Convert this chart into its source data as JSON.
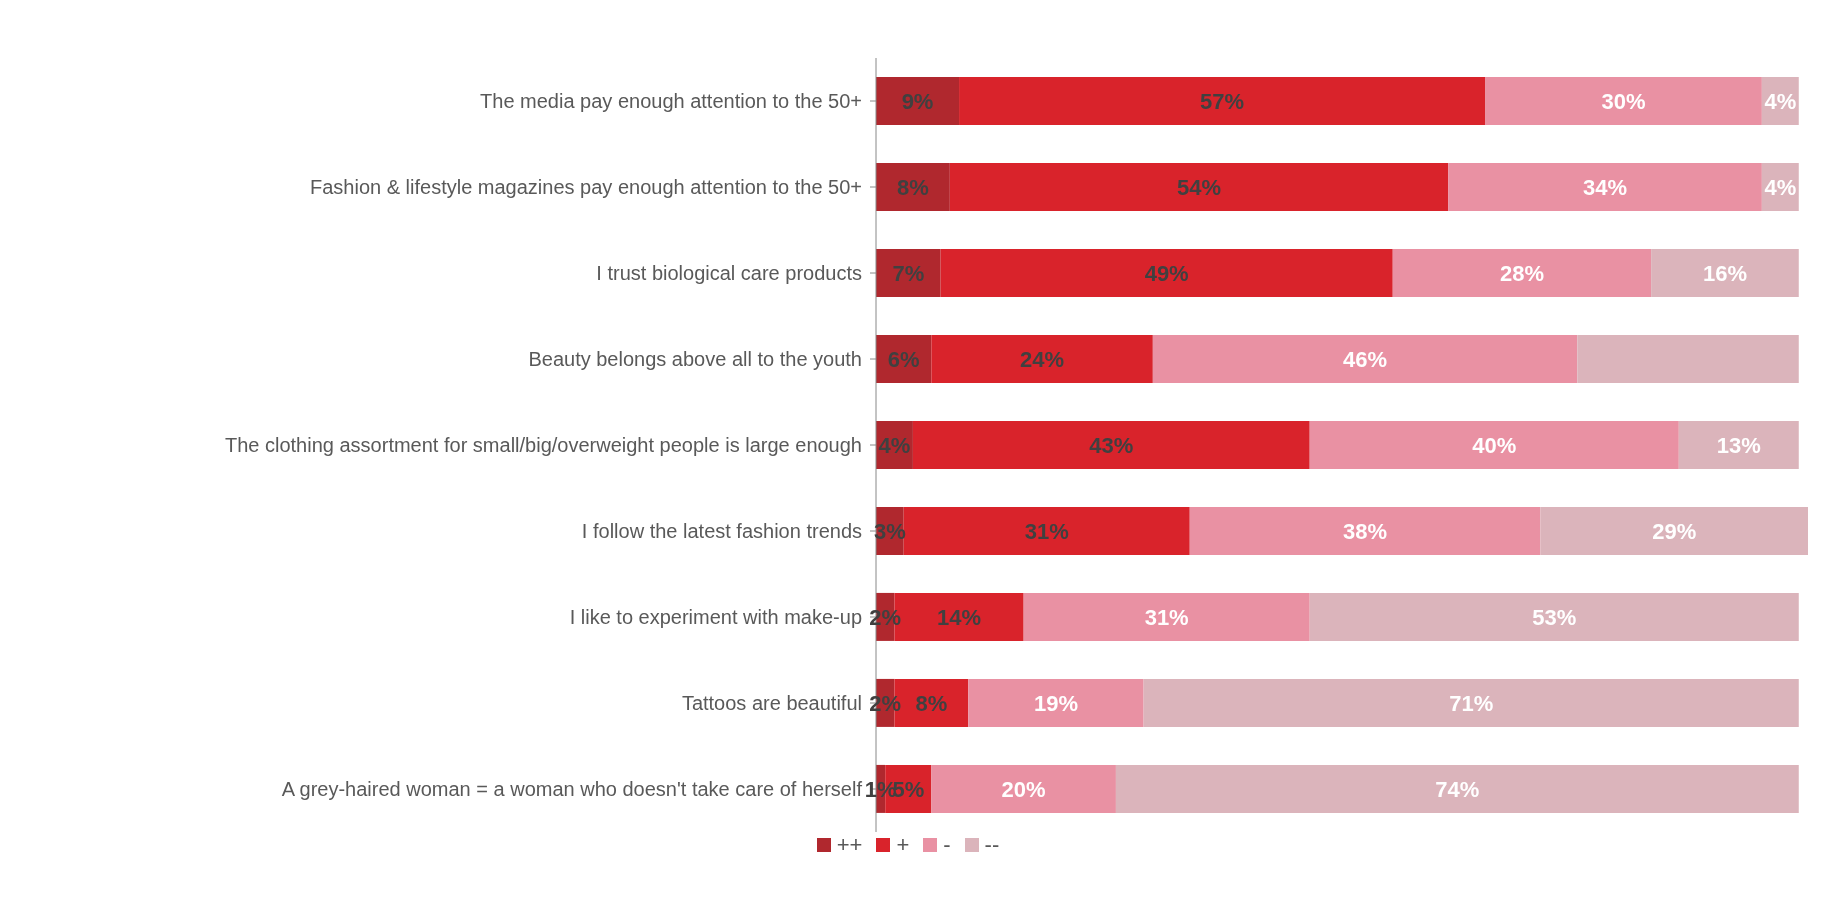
{
  "chart_data": {
    "type": "bar",
    "orientation": "horizontal",
    "stacked": true,
    "categories": [
      "The media pay enough attention to the 50+",
      "Fashion & lifestyle magazines pay enough attention to the 50+",
      "I trust biological care products",
      "Beauty belongs above all to the youth",
      "The clothing assortment for small/big/overweight people is large enough",
      "I follow the latest fashion trends",
      "I like to experiment with make-up",
      "Tattoos are beautiful",
      "A grey-haired woman = a woman who doesn't take care of herself"
    ],
    "series": [
      {
        "name": "++",
        "color": "#b0282e",
        "values": [
          9,
          8,
          7,
          6,
          4,
          3,
          2,
          2,
          1
        ],
        "value_labels": [
          "9%",
          "8%",
          "7%",
          "6%",
          "4%",
          "3%",
          "2%",
          "2%",
          "1%"
        ]
      },
      {
        "name": "+",
        "color": "#d9232b",
        "values": [
          57,
          54,
          49,
          24,
          43,
          31,
          14,
          8,
          5
        ],
        "value_labels": [
          "57%",
          "54%",
          "49%",
          "24%",
          "43%",
          "31%",
          "14%",
          "8%",
          "5%"
        ]
      },
      {
        "name": "-",
        "color": "#e991a3",
        "values": [
          30,
          34,
          28,
          46,
          40,
          38,
          31,
          19,
          20
        ],
        "value_labels": [
          "30%",
          "34%",
          "28%",
          "46%",
          "40%",
          "38%",
          "31%",
          "19%",
          "20%"
        ]
      },
      {
        "name": "--",
        "color": "#dbb4bb",
        "values": [
          4,
          4,
          16,
          24,
          13,
          29,
          53,
          71,
          74
        ],
        "value_labels": [
          "4%",
          "4%",
          "16%",
          null,
          "13%",
          "29%",
          "53%",
          "71%",
          "74%"
        ]
      }
    ],
    "xlim": [
      0,
      101
    ],
    "tick_labels": "y",
    "legend": "bottom"
  }
}
